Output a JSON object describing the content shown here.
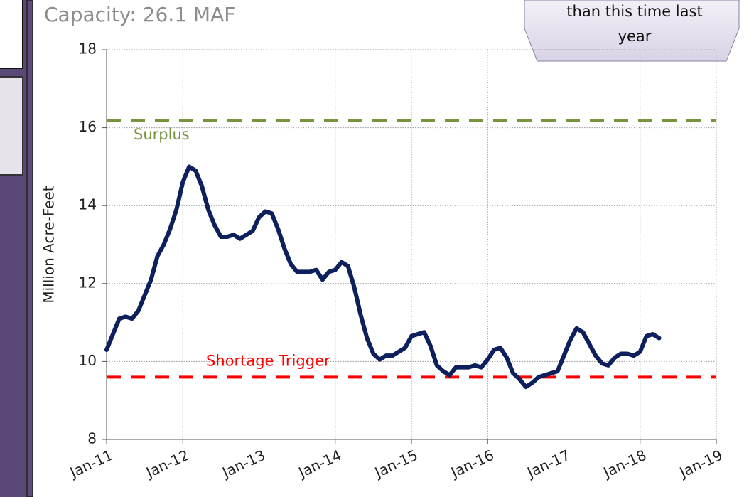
{
  "chart_data": {
    "type": "line",
    "subtitle": "Capacity: 26.1 MAF",
    "callout": [
      "than this time last",
      "year"
    ],
    "ylabel": "Million Acre-Feet",
    "x": [
      "Jan-11",
      "Feb-11",
      "Mar-11",
      "Apr-11",
      "May-11",
      "Jun-11",
      "Jul-11",
      "Aug-11",
      "Sep-11",
      "Oct-11",
      "Nov-11",
      "Dec-11",
      "Jan-12",
      "Feb-12",
      "Mar-12",
      "Apr-12",
      "May-12",
      "Jun-12",
      "Jul-12",
      "Aug-12",
      "Sep-12",
      "Oct-12",
      "Nov-12",
      "Dec-12",
      "Jan-13",
      "Feb-13",
      "Mar-13",
      "Apr-13",
      "May-13",
      "Jun-13",
      "Jul-13",
      "Aug-13",
      "Sep-13",
      "Oct-13",
      "Nov-13",
      "Dec-13",
      "Jan-14",
      "Feb-14",
      "Mar-14",
      "Apr-14",
      "May-14",
      "Jun-14",
      "Jul-14",
      "Aug-14",
      "Sep-14",
      "Oct-14",
      "Nov-14",
      "Dec-14",
      "Jan-15",
      "Feb-15",
      "Mar-15",
      "Apr-15",
      "May-15",
      "Jun-15",
      "Jul-15",
      "Aug-15",
      "Sep-15",
      "Oct-15",
      "Nov-15",
      "Dec-15",
      "Jan-16",
      "Feb-16",
      "Mar-16",
      "Apr-16",
      "May-16",
      "Jun-16",
      "Jul-16",
      "Aug-16",
      "Sep-16",
      "Oct-16",
      "Nov-16",
      "Dec-16",
      "Jan-17",
      "Feb-17",
      "Mar-17",
      "Apr-17",
      "May-17",
      "Jun-17",
      "Jul-17",
      "Aug-17",
      "Sep-17",
      "Oct-17",
      "Nov-17",
      "Dec-17",
      "Jan-18",
      "Feb-18",
      "Mar-18",
      "Apr-18"
    ],
    "series": [
      {
        "color": "#0d1f5c",
        "values": [
          10.3,
          10.7,
          11.1,
          11.15,
          11.1,
          11.3,
          11.7,
          12.1,
          12.7,
          13.0,
          13.4,
          13.9,
          14.6,
          15.0,
          14.9,
          14.5,
          13.9,
          13.5,
          13.2,
          13.2,
          13.25,
          13.15,
          13.25,
          13.35,
          13.7,
          13.85,
          13.8,
          13.4,
          12.9,
          12.5,
          12.3,
          12.3,
          12.3,
          12.35,
          12.1,
          12.3,
          12.35,
          12.55,
          12.45,
          11.9,
          11.2,
          10.6,
          10.2,
          10.05,
          10.15,
          10.15,
          10.25,
          10.35,
          10.65,
          10.7,
          10.75,
          10.4,
          9.9,
          9.75,
          9.65,
          9.85,
          9.85,
          9.85,
          9.9,
          9.85,
          10.05,
          10.3,
          10.35,
          10.1,
          9.7,
          9.55,
          9.35,
          9.45,
          9.6,
          9.65,
          9.7,
          9.75,
          10.15,
          10.55,
          10.85,
          10.75,
          10.45,
          10.15,
          9.95,
          9.9,
          10.1,
          10.2,
          10.2,
          10.15,
          10.25,
          10.65,
          10.7,
          10.6
        ]
      }
    ],
    "thresholds": [
      {
        "label": "Surplus",
        "value": 16.19,
        "color": "#77933c"
      },
      {
        "label": "Shortage Trigger",
        "value": 9.6,
        "color": "#ff0000"
      }
    ],
    "xlim": [
      0,
      96
    ],
    "xticks": [
      {
        "value": 0,
        "label": "Jan-11"
      },
      {
        "value": 12,
        "label": "Jan-12"
      },
      {
        "value": 24,
        "label": "Jan-13"
      },
      {
        "value": 36,
        "label": "Jan-14"
      },
      {
        "value": 48,
        "label": "Jan-15"
      },
      {
        "value": 60,
        "label": "Jan-16"
      },
      {
        "value": 72,
        "label": "Jan-17"
      },
      {
        "value": 84,
        "label": "Jan-18"
      },
      {
        "value": 96,
        "label": "Jan-19"
      }
    ],
    "ylim": [
      8,
      18
    ],
    "yticks": [
      8,
      10,
      12,
      14,
      16,
      18
    ],
    "grid": true
  }
}
